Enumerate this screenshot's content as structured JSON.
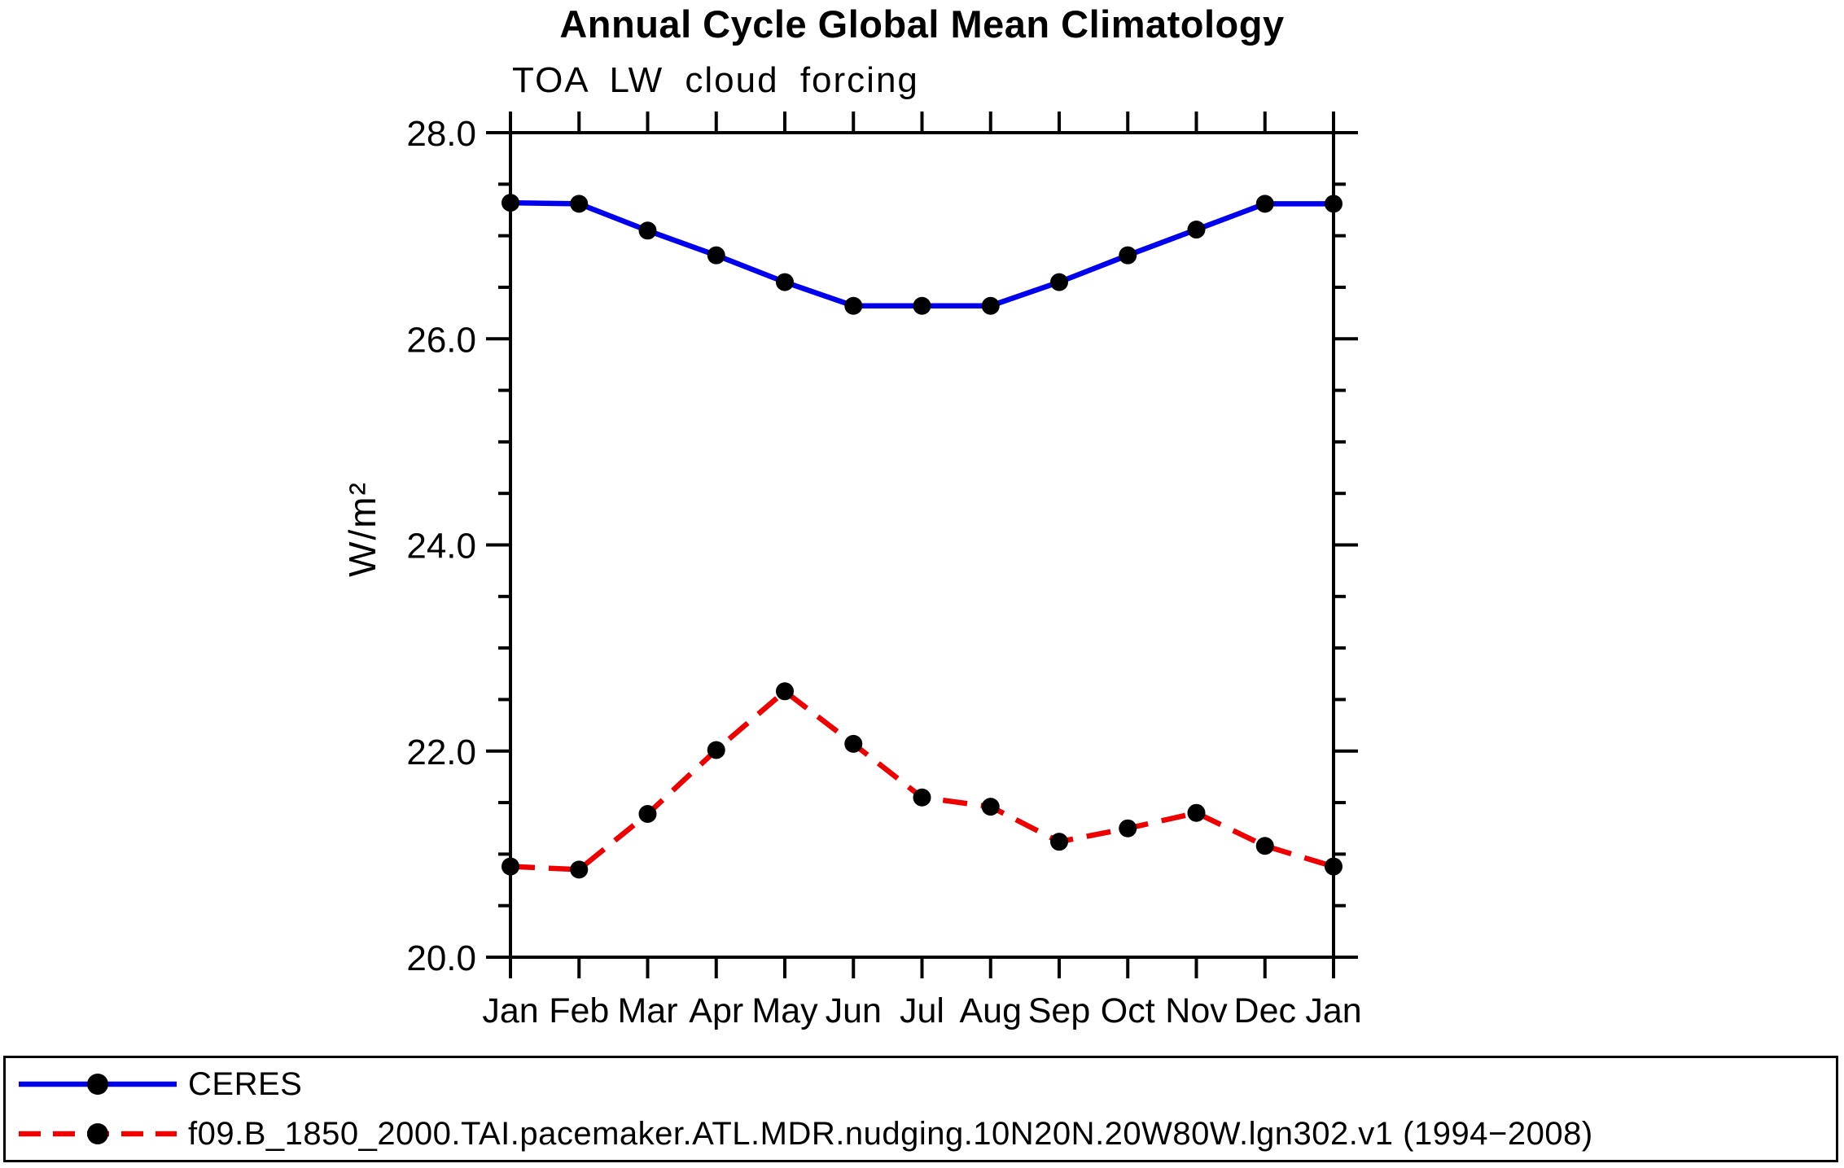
{
  "page": {
    "background_color": "#FFFFFF",
    "text_color": "#000000"
  },
  "chart_data": {
    "type": "line",
    "title": "Annual Cycle Global Mean Climatology",
    "subtitle": "TOA LW cloud forcing",
    "ylabel": "W/m²",
    "xlabel": "",
    "categories": [
      "Jan",
      "Feb",
      "Mar",
      "Apr",
      "May",
      "Jun",
      "Jul",
      "Aug",
      "Sep",
      "Oct",
      "Nov",
      "Dec",
      "Jan"
    ],
    "ylim": [
      20.0,
      28.0
    ],
    "yticks": {
      "values": [
        28.0,
        26.0,
        24.0,
        22.0,
        20.0
      ],
      "labels": [
        "28.0",
        "26.0",
        "24.0",
        "22.0",
        "20.0"
      ]
    },
    "ytick_minor_step": 0.5,
    "grid": false,
    "legend_position": "bottom",
    "axis_color": "#000000",
    "marker": {
      "shape": "circle",
      "color": "#000000",
      "radius": 11
    },
    "series": [
      {
        "name": "CERES",
        "color": "#0000EE",
        "line_style": "solid",
        "values": [
          27.32,
          27.31,
          27.05,
          26.81,
          26.55,
          26.32,
          26.32,
          26.32,
          26.55,
          26.81,
          27.06,
          27.31,
          27.31
        ]
      },
      {
        "name": "f09.B_1850_2000.TAI.pacemaker.ATL.MDR.nudging.10N20N.20W80W.lgn302.v1 (1994−2008)",
        "color": "#EE0000",
        "line_style": "dashed",
        "values": [
          20.88,
          20.85,
          21.39,
          22.01,
          22.58,
          22.07,
          21.55,
          21.46,
          21.12,
          21.25,
          21.4,
          21.08,
          20.88
        ]
      }
    ]
  }
}
